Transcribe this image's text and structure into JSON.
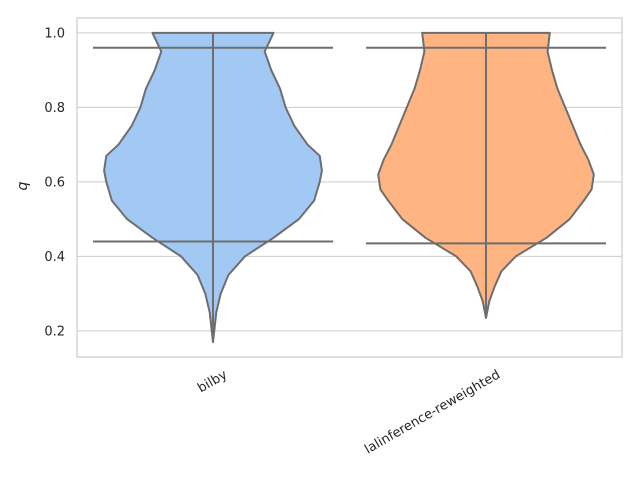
{
  "chart_data": {
    "type": "violin",
    "title": "",
    "xlabel": "",
    "ylabel": "q",
    "ylim": [
      0.13,
      1.04
    ],
    "yticks": [
      0.2,
      0.4,
      0.6,
      0.8,
      1.0
    ],
    "ytick_labels": [
      "0.2",
      "0.4",
      "0.6",
      "0.8",
      "1.0"
    ],
    "categories": [
      "bilby",
      "lalinference-reweighted"
    ],
    "grid": true,
    "colors": {
      "bilby": "#a1c9f4",
      "lalinference-reweighted": "#ffb482",
      "outline": "#6e6e6e",
      "grid": "#cccccc",
      "frame": "#cccccc"
    },
    "series": [
      {
        "name": "bilby",
        "min": 0.17,
        "max": 1.0,
        "quantile_lines": [
          0.44,
          0.96
        ],
        "density_profile": [
          [
            0.17,
            0.0
          ],
          [
            0.25,
            0.03
          ],
          [
            0.3,
            0.07
          ],
          [
            0.35,
            0.14
          ],
          [
            0.4,
            0.29
          ],
          [
            0.45,
            0.55
          ],
          [
            0.5,
            0.78
          ],
          [
            0.55,
            0.92
          ],
          [
            0.6,
            0.97
          ],
          [
            0.63,
            0.99
          ],
          [
            0.67,
            0.97
          ],
          [
            0.7,
            0.86
          ],
          [
            0.75,
            0.74
          ],
          [
            0.8,
            0.66
          ],
          [
            0.85,
            0.61
          ],
          [
            0.9,
            0.53
          ],
          [
            0.95,
            0.47
          ],
          [
            1.0,
            0.55
          ]
        ]
      },
      {
        "name": "lalinference-reweighted",
        "min": 0.235,
        "max": 1.0,
        "quantile_lines": [
          0.435,
          0.96
        ],
        "density_profile": [
          [
            0.235,
            0.0
          ],
          [
            0.28,
            0.03
          ],
          [
            0.32,
            0.08
          ],
          [
            0.36,
            0.14
          ],
          [
            0.4,
            0.27
          ],
          [
            0.45,
            0.55
          ],
          [
            0.5,
            0.76
          ],
          [
            0.55,
            0.89
          ],
          [
            0.58,
            0.96
          ],
          [
            0.62,
            0.98
          ],
          [
            0.66,
            0.93
          ],
          [
            0.7,
            0.86
          ],
          [
            0.75,
            0.79
          ],
          [
            0.8,
            0.72
          ],
          [
            0.85,
            0.65
          ],
          [
            0.9,
            0.6
          ],
          [
            0.95,
            0.56
          ],
          [
            1.0,
            0.58
          ]
        ]
      }
    ]
  }
}
